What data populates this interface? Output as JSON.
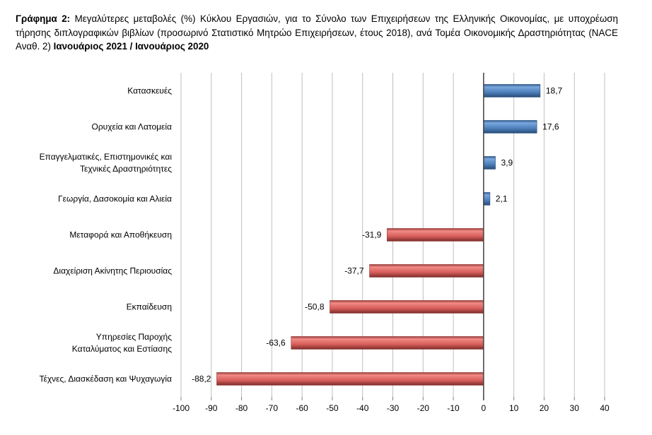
{
  "chart_data": {
    "type": "bar",
    "orientation": "horizontal",
    "title_prefix": "Γράφημα 2:",
    "title": "Μεγαλύτερες μεταβολές (%) Κύκλου Εργασιών, για το Σύνολο των Επιχειρήσεων της Ελληνικής Οικονομίας, με υποχρέωση τήρησης διπλογραφικών βιβλίων (προσωρινό Στατιστικό Μητρώο Επιχειρήσεων, έτους 2018), ανά Τομέα Οικονομικής Δραστηριότητας (NACE Αναθ. 2)",
    "title_suffix": "Ιανουάριος 2021 / Ιανουάριος 2020",
    "categories": [
      [
        "Κατασκευές"
      ],
      [
        "Ορυχεία και Λατομεία"
      ],
      [
        "Επαγγελματικές, Επιστημονικές και",
        "Τεχνικές Δραστηριότητες"
      ],
      [
        "Γεωργία, Δασοκομία και Αλιεία"
      ],
      [
        "Μεταφορά και Αποθήκευση"
      ],
      [
        "Διαχείριση Ακίνητης Περιουσίας"
      ],
      [
        "Εκπαίδευση"
      ],
      [
        "Υπηρεσίες Παροχής",
        "Καταλύματος και Εστίασης"
      ],
      [
        "Τέχνες, Διασκέδαση και Ψυχαγωγία"
      ]
    ],
    "values": [
      18.7,
      17.6,
      3.9,
      2.1,
      -31.9,
      -37.7,
      -50.8,
      -63.6,
      -88.2
    ],
    "data_labels": [
      "18,7",
      "17,6",
      "3,9",
      "2,1",
      "-31,9",
      "-37,7",
      "-50,8",
      "-63,6",
      "-88,2"
    ],
    "xlim": [
      -100,
      40
    ],
    "xticks": [
      -100,
      -90,
      -80,
      -70,
      -60,
      -50,
      -40,
      -30,
      -20,
      -10,
      0,
      10,
      20,
      30,
      40
    ],
    "grid": "vertical",
    "legend": "none",
    "colors": {
      "positive": "#4f81bd",
      "negative": "#c0504d"
    }
  }
}
